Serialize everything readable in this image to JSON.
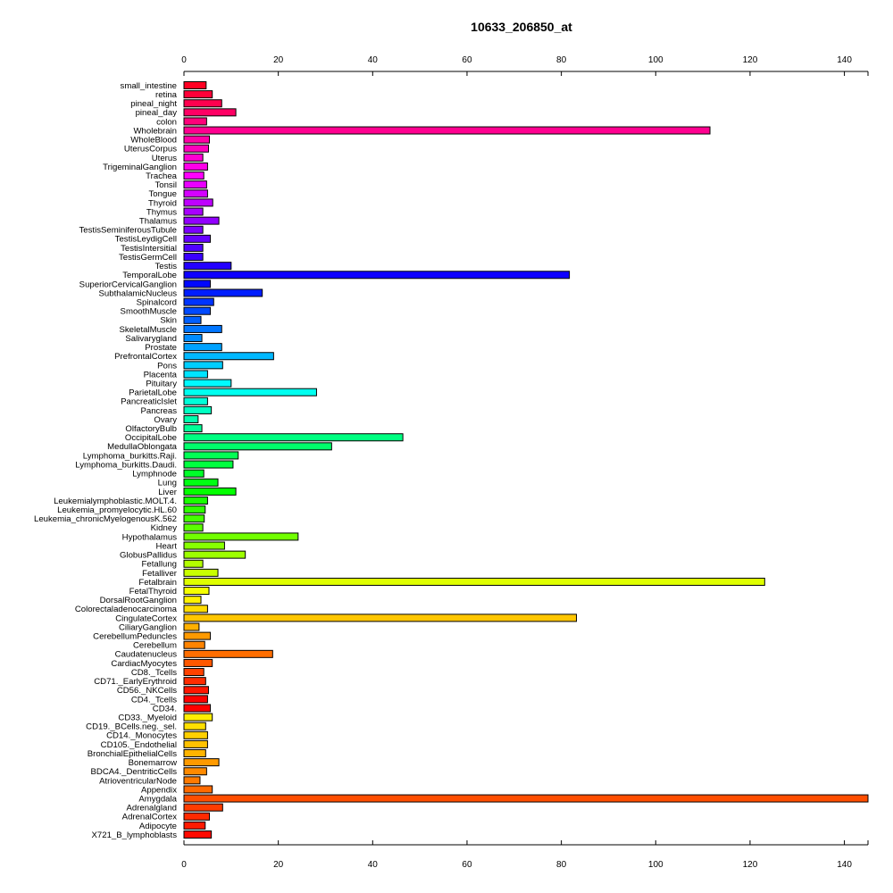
{
  "chart_data": {
    "type": "bar",
    "orientation": "horizontal",
    "title": "10633_206850_at",
    "xlabel": "",
    "ylabel": "",
    "xlim": [
      0,
      145
    ],
    "x_ticks": [
      0,
      20,
      40,
      60,
      80,
      100,
      120,
      140
    ],
    "axes": "top-and-bottom",
    "grid": false,
    "legend": "none",
    "categories": [
      "small_intestine",
      "retina",
      "pineal_night",
      "pineal_day",
      "colon",
      "Wholebrain",
      "WholeBlood",
      "UterusCorpus",
      "Uterus",
      "TrigeminalGanglion",
      "Trachea",
      "Tonsil",
      "Tongue",
      "Thyroid",
      "Thymus",
      "Thalamus",
      "TestisSeminiferousTubule",
      "TestisLeydigCell",
      "TestisIntersitial",
      "TestisGermCell",
      "Testis",
      "TemporalLobe",
      "SuperiorCervicalGanglion",
      "SubthalamicNucleus",
      "Spinalcord",
      "SmoothMuscle",
      "Skin",
      "SkeletalMuscle",
      "Salivarygland",
      "Prostate",
      "PrefrontalCortex",
      "Pons",
      "Placenta",
      "Pituitary",
      "ParietalLobe",
      "PancreaticIslet",
      "Pancreas",
      "Ovary",
      "OlfactoryBulb",
      "OccipitalLobe",
      "MedullaOblongata",
      "Lymphoma_burkitts.Raji.",
      "Lymphoma_burkitts.Daudi.",
      "Lymphnode",
      "Lung",
      "Liver",
      "Leukemialymphoblastic.MOLT.4.",
      "Leukemia_promyelocytic.HL.60",
      "Leukemia_chronicMyelogenousK.562",
      "Kidney",
      "Hypothalamus",
      "Heart",
      "GlobusPallidus",
      "Fetallung",
      "Fetalliver",
      "Fetalbrain",
      "FetalThyroid",
      "DorsalRootGanglion",
      "Colorectaladenocarcinoma",
      "CingulateCortex",
      "CiliaryGanglion",
      "CerebellumPeduncles",
      "Cerebellum",
      "Caudatenucleus",
      "CardiacMyocytes",
      "CD8._Tcells",
      "CD71._EarlyErythroid",
      "CD56._NKCells",
      "CD4._Tcells",
      "CD34.",
      "CD33._Myeloid",
      "CD19._BCells.neg._sel.",
      "CD14._Monocytes",
      "CD105._Endothelial",
      "BronchialEpithelialCells",
      "Bonemarrow",
      "BDCA4._DentriticCells",
      "AtrioventricularNode",
      "Appendix",
      "Amygdala",
      "Adrenalgland",
      "AdrenalCortex",
      "Adipocyte",
      "X721_B_lymphoblasts"
    ],
    "values": [
      4.7,
      6.0,
      8.0,
      11.0,
      4.8,
      111.5,
      5.4,
      5.2,
      4.0,
      5.0,
      4.2,
      4.8,
      5.0,
      6.1,
      4.0,
      7.4,
      4.0,
      5.6,
      4.0,
      4.0,
      10.0,
      81.7,
      5.6,
      16.6,
      6.3,
      5.6,
      3.6,
      8.0,
      3.8,
      8.0,
      19.0,
      8.2,
      5.0,
      10.0,
      28.1,
      5.0,
      5.8,
      3.0,
      3.8,
      46.4,
      31.3,
      11.5,
      10.4,
      4.2,
      7.2,
      11.0,
      5.0,
      4.5,
      4.3,
      4.0,
      24.2,
      8.6,
      13.0,
      4.0,
      7.2,
      123.1,
      5.3,
      3.6,
      5.0,
      83.2,
      3.2,
      5.6,
      4.4,
      18.8,
      6.0,
      4.2,
      4.6,
      5.2,
      5.0,
      5.6,
      6.0,
      4.6,
      5.0,
      5.0,
      4.6,
      7.4,
      4.8,
      3.4,
      6.0,
      145.0,
      8.2,
      5.4,
      4.5,
      5.8
    ],
    "colors": [
      "#FF0022",
      "#FF0038",
      "#FF004E",
      "#FF0064",
      "#FF007A",
      "#FF0090",
      "#FF00A6",
      "#FF00BC",
      "#FF00D2",
      "#FF00E8",
      "#FF00FE",
      "#EA00FF",
      "#D400FF",
      "#BE00FF",
      "#A800FF",
      "#9200FF",
      "#7C00FF",
      "#6600FF",
      "#5000FF",
      "#3A00FF",
      "#2400FF",
      "#0E00FF",
      "#0008FF",
      "#001EFF",
      "#0034FF",
      "#004AFF",
      "#0060FF",
      "#0076FF",
      "#008CFF",
      "#00A2FF",
      "#00B8FF",
      "#00CEFF",
      "#00E4FF",
      "#00FAFF",
      "#00FFEF",
      "#00FFD9",
      "#00FFC3",
      "#00FFAD",
      "#00FF97",
      "#00FF81",
      "#00FF6B",
      "#00FF55",
      "#00FF3F",
      "#00FF29",
      "#00FF13",
      "#03FF00",
      "#19FF00",
      "#2FFF00",
      "#45FF00",
      "#5BFF00",
      "#71FF00",
      "#87FF00",
      "#9DFF00",
      "#B3FF00",
      "#C9FF00",
      "#DFFF00",
      "#F5FF00",
      "#FFF200",
      "#FFDC00",
      "#FFC600",
      "#FFB000",
      "#FF9A00",
      "#FF8400",
      "#FF6E00",
      "#FF5800",
      "#FF4200",
      "#FF2C00",
      "#FF1600",
      "#FF0000",
      "#FF0000",
      "#FFEE00",
      "#FFE000",
      "#FFD000",
      "#FFC200",
      "#FFB400",
      "#FF9A00",
      "#FF8A00",
      "#FF7A00",
      "#FF6A00",
      "#FF4E00",
      "#FF3C00",
      "#FF2A00",
      "#FF1A00",
      "#FF0A00"
    ]
  }
}
